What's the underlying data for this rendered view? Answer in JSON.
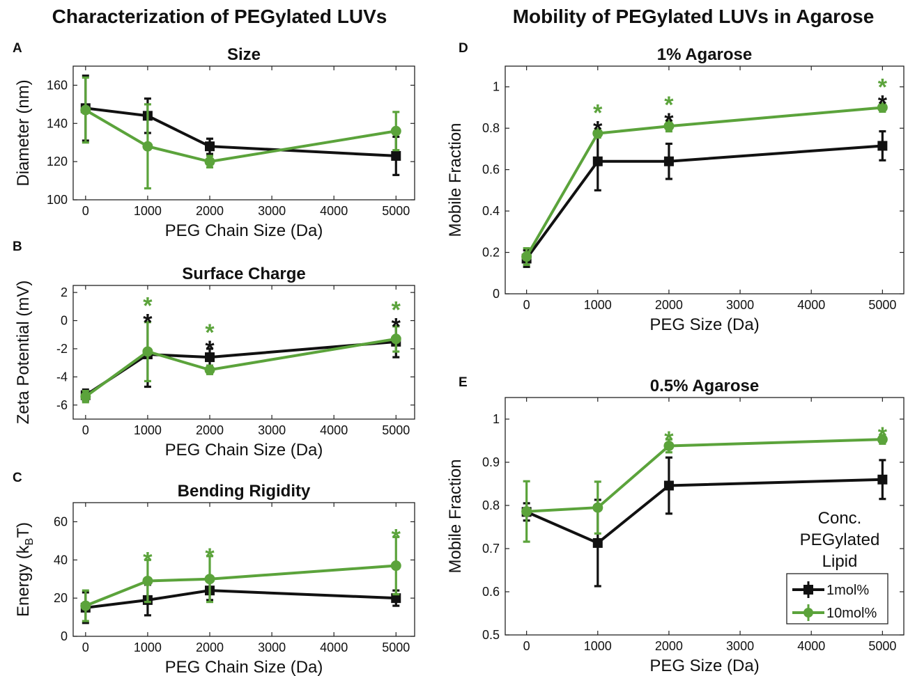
{
  "headers": {
    "left": "Characterization of PEGylated LUVs",
    "right": "Mobility of PEGylated LUVs in Agarose"
  },
  "colors": {
    "series_1mol": "#111111",
    "series_10mol": "#5ba33b"
  },
  "legend": {
    "title_lines": [
      "Conc.",
      "PEGylated",
      "Lipid"
    ],
    "items": [
      "1mol%",
      "10mol%"
    ]
  },
  "chart_data": [
    {
      "panel": "A",
      "title": "Size",
      "type": "line",
      "xlabel": "PEG Chain Size (Da)",
      "ylabel": "Diameter (nm)",
      "xlim": [
        -200,
        5300
      ],
      "ylim": [
        100,
        170
      ],
      "xticks": [
        0,
        1000,
        2000,
        3000,
        4000,
        5000
      ],
      "yticks": [
        100,
        120,
        140,
        160
      ],
      "x": [
        0,
        1000,
        2000,
        5000
      ],
      "series": [
        {
          "name": "1mol%",
          "color": "#111111",
          "marker": "square",
          "values": [
            148,
            144,
            128,
            123
          ],
          "errors": [
            17,
            9,
            4,
            10
          ]
        },
        {
          "name": "10mol%",
          "color": "#5ba33b",
          "marker": "circle",
          "values": [
            147,
            128,
            120,
            136
          ],
          "errors": [
            17,
            22,
            3,
            10
          ]
        }
      ],
      "annotations": []
    },
    {
      "panel": "B",
      "title": "Surface Charge",
      "type": "line",
      "xlabel": "PEG Chain Size (Da)",
      "ylabel": "Zeta Potential (mV)",
      "xlim": [
        -200,
        5300
      ],
      "ylim": [
        -7,
        2.5
      ],
      "xticks": [
        0,
        1000,
        2000,
        3000,
        4000,
        5000
      ],
      "yticks": [
        -6,
        -4,
        -2,
        0,
        2
      ],
      "x": [
        0,
        1000,
        2000,
        5000
      ],
      "series": [
        {
          "name": "1mol%",
          "color": "#111111",
          "marker": "square",
          "values": [
            -5.3,
            -2.4,
            -2.6,
            -1.5
          ],
          "errors": [
            0.4,
            2.3,
            0.6,
            1.1
          ]
        },
        {
          "name": "10mol%",
          "color": "#5ba33b",
          "marker": "circle",
          "values": [
            -5.4,
            -2.2,
            -3.5,
            -1.3
          ],
          "errors": [
            0.4,
            2.1,
            0.3,
            0.9
          ]
        }
      ],
      "annotations": [
        {
          "x": 1000,
          "star_10mol": true,
          "star_1mol": true
        },
        {
          "x": 2000,
          "star_10mol": true,
          "star_1mol": true
        },
        {
          "x": 5000,
          "star_10mol": true,
          "star_1mol": true
        }
      ]
    },
    {
      "panel": "C",
      "title": "Bending Rigidity",
      "type": "line",
      "xlabel": "PEG Chain Size (Da)",
      "ylabel": "Energy (kBT)",
      "xlim": [
        -200,
        5300
      ],
      "ylim": [
        0,
        70
      ],
      "xticks": [
        0,
        1000,
        2000,
        3000,
        4000,
        5000
      ],
      "yticks": [
        0,
        20,
        40,
        60
      ],
      "x": [
        0,
        1000,
        2000,
        5000
      ],
      "series": [
        {
          "name": "1mol%",
          "color": "#111111",
          "marker": "square",
          "values": [
            15,
            19,
            24,
            20
          ],
          "errors": [
            8,
            8,
            5,
            4
          ]
        },
        {
          "name": "10mol%",
          "color": "#5ba33b",
          "marker": "circle",
          "values": [
            16,
            29,
            30,
            37
          ],
          "errors": [
            8,
            11,
            12,
            15
          ]
        }
      ],
      "annotations": [
        {
          "x": 1000,
          "star_10mol": true,
          "star_1mol": false
        },
        {
          "x": 2000,
          "star_10mol": true,
          "star_1mol": false
        },
        {
          "x": 5000,
          "star_10mol": true,
          "star_1mol": false
        }
      ]
    },
    {
      "panel": "D",
      "title": "1% Agarose",
      "type": "line",
      "xlabel": "PEG Size (Da)",
      "ylabel": "Mobile Fraction",
      "xlim": [
        -300,
        5300
      ],
      "ylim": [
        0,
        1.1
      ],
      "xticks": [
        0,
        1000,
        2000,
        3000,
        4000,
        5000
      ],
      "yticks": [
        0,
        0.2,
        0.4,
        0.6,
        0.8,
        1
      ],
      "x": [
        0,
        1000,
        2000,
        5000
      ],
      "series": [
        {
          "name": "1mol%",
          "color": "#111111",
          "marker": "square",
          "values": [
            0.17,
            0.64,
            0.64,
            0.715
          ],
          "errors": [
            0.04,
            0.14,
            0.085,
            0.07
          ]
        },
        {
          "name": "10mol%",
          "color": "#5ba33b",
          "marker": "circle",
          "values": [
            0.18,
            0.775,
            0.81,
            0.9
          ],
          "errors": [
            0.04,
            0.02,
            0.025,
            0.02
          ]
        }
      ],
      "annotations": [
        {
          "x": 1000,
          "star_10mol": true,
          "star_1mol": true
        },
        {
          "x": 2000,
          "star_10mol": true,
          "star_1mol": true
        },
        {
          "x": 5000,
          "star_10mol": true,
          "star_1mol": true
        }
      ]
    },
    {
      "panel": "E",
      "title": "0.5% Agarose",
      "type": "line",
      "xlabel": "PEG Size (Da)",
      "ylabel": "Mobile Fraction",
      "xlim": [
        -300,
        5300
      ],
      "ylim": [
        0.5,
        1.05
      ],
      "xticks": [
        0,
        1000,
        2000,
        3000,
        4000,
        5000
      ],
      "yticks": [
        0.5,
        0.6,
        0.7,
        0.8,
        0.9,
        1
      ],
      "x": [
        0,
        1000,
        2000,
        5000
      ],
      "series": [
        {
          "name": "1mol%",
          "color": "#111111",
          "marker": "square",
          "values": [
            0.785,
            0.713,
            0.846,
            0.86
          ],
          "errors": [
            0.02,
            0.1,
            0.065,
            0.045
          ]
        },
        {
          "name": "10mol%",
          "color": "#5ba33b",
          "marker": "circle",
          "values": [
            0.786,
            0.795,
            0.938,
            0.953
          ],
          "errors": [
            0.07,
            0.06,
            0.015,
            0.01
          ]
        }
      ],
      "annotations": [
        {
          "x": 2000,
          "star_10mol": true,
          "star_1mol": false
        },
        {
          "x": 5000,
          "star_10mol": true,
          "star_1mol": false
        }
      ]
    }
  ]
}
